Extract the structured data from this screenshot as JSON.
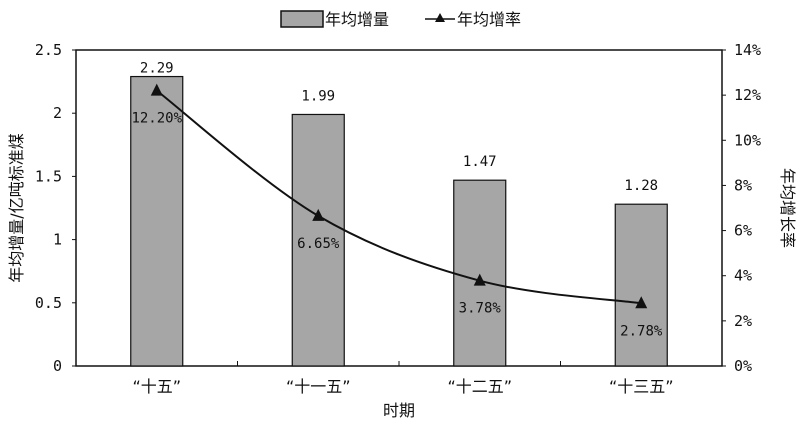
{
  "chart_data": {
    "type": "bar+line",
    "categories": [
      "“十五”",
      "“十一五”",
      "“十二五”",
      "“十三五”"
    ],
    "xlabel": "时期",
    "ylabel": "年均增量/亿吨标准煤",
    "y2label": "年均增长率",
    "ylim": [
      0,
      2.5
    ],
    "yticks": [
      "0",
      "0.5",
      "1",
      "1.5",
      "2",
      "2.5"
    ],
    "y2lim": [
      0,
      14
    ],
    "y2ticks": [
      "0%",
      "2%",
      "4%",
      "6%",
      "8%",
      "10%",
      "12%",
      "14%"
    ],
    "legend_position": "top",
    "grid": false,
    "series": [
      {
        "name": "年均增量",
        "type": "bar",
        "axis": "left",
        "color": "#a6a6a6",
        "values": [
          2.29,
          1.99,
          1.47,
          1.28
        ],
        "labels": [
          "2.29",
          "1.99",
          "1.47",
          "1.28"
        ]
      },
      {
        "name": "年均增率",
        "type": "line",
        "axis": "right",
        "color": "#111111",
        "marker": "triangle",
        "values": [
          12.2,
          6.65,
          3.78,
          2.78
        ],
        "labels": [
          "12.20%",
          "6.65%",
          "3.78%",
          "2.78%"
        ]
      }
    ]
  }
}
